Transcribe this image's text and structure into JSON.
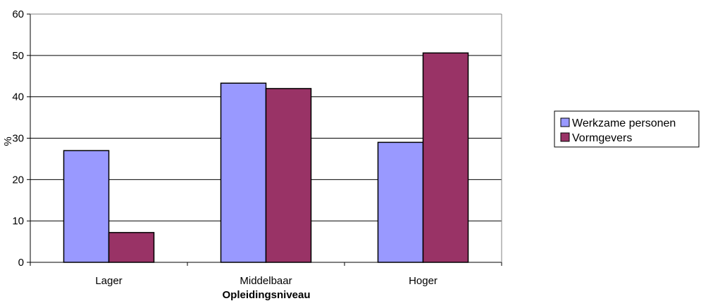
{
  "chart_data": {
    "type": "bar",
    "title": "",
    "xlabel": "Opleidingsniveau",
    "ylabel": "%",
    "ylim": [
      0,
      60
    ],
    "yticks": [
      0,
      10,
      20,
      30,
      40,
      50,
      60
    ],
    "grid": true,
    "legend_position": "right",
    "categories": [
      "Lager",
      "Middelbaar",
      "Hoger"
    ],
    "series": [
      {
        "name": "Werkzame personen",
        "color": "#9999ff",
        "values": [
          27,
          43.3,
          29
        ]
      },
      {
        "name": "Vormgevers",
        "color": "#993366",
        "values": [
          7.2,
          42,
          50.6
        ]
      }
    ]
  }
}
